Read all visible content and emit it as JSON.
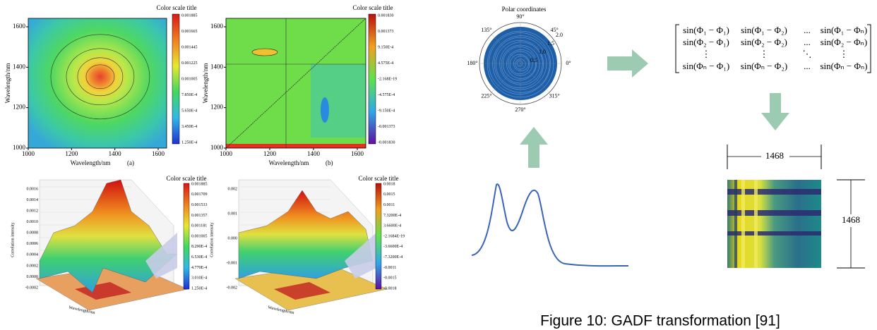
{
  "panel_a": {
    "title": "Color scale title",
    "colorbar_labels": [
      "0.001885",
      "0.001665",
      "0.001445",
      "0.001225",
      "0.001005",
      "7.850E-4",
      "5.650E-4",
      "3.450E-4",
      "1.250E-4"
    ],
    "y_label": "Wavelength/nm",
    "x_label": "Wavelength/nm",
    "tag": "(a)",
    "y_ticks": [
      "1000",
      "1200",
      "1400",
      "1600"
    ],
    "x_ticks": [
      "1000",
      "1200",
      "1400",
      "1600"
    ]
  },
  "panel_b": {
    "title": "Color scale title",
    "colorbar_labels": [
      "0.001830",
      "0.001373",
      "9.150E-4",
      "4.575E-4",
      "-2.168E-19",
      "-4.575E-4",
      "-9.150E-4",
      "-0.001373",
      "-0.001830"
    ],
    "y_label": "Wavelength/nm",
    "x_label": "Wavelength/nm",
    "tag": "(b)",
    "y_ticks": [
      "1000",
      "1200",
      "1400",
      "1600"
    ],
    "x_ticks": [
      "1000",
      "1200",
      "1400",
      "1600"
    ]
  },
  "panel_c": {
    "title": "Color scale title",
    "colorbar_labels": [
      "0.001885",
      "0.001709",
      "0.001533",
      "0.001357",
      "0.001181",
      "0.001005",
      "8.290E-4",
      "6.530E-4",
      "4.770E-4",
      "3.010E-4",
      "1.250E-4"
    ],
    "z_label": "Correlation intensity",
    "z_ticks": [
      "0.0016",
      "0.0014",
      "0.0012",
      "0.0010",
      "0.0008",
      "0.0006",
      "0.0004",
      "0.0002",
      "0.0000",
      "-0.0002"
    ],
    "x_label": "Wavelength/nm"
  },
  "panel_d": {
    "title": "Color scale title",
    "colorbar_labels": [
      "0.0018",
      "0.0015",
      "0.0011",
      "7.3200E-4",
      "3.6600E-4",
      "-2.1684E-19",
      "-3.6600E-4",
      "-7.3200E-4",
      "-0.0011",
      "-0.0015",
      "-0.0018"
    ],
    "z_label": "Correlation intensity",
    "z_ticks": [
      "0.002",
      "0.001",
      "0.000",
      "-0.001",
      "-0.002"
    ],
    "x_label": "Wavelength/nm"
  },
  "gadf": {
    "polar_title": "Polar coordinates",
    "angles": [
      "90°",
      "45°",
      "0°",
      "315°",
      "270°",
      "225°",
      "180°",
      "135°"
    ],
    "radial_ticks": [
      "0.5",
      "1.0",
      "1.5",
      "2.0"
    ],
    "matrix": [
      [
        "sin(Φ₁ − Φ₁)",
        "sin(Φ₁ − Φ₂)",
        "...",
        "sin(Φ₁ − Φₙ)"
      ],
      [
        "sin(Φ₂ − Φ₁)",
        "sin(Φ₂ − Φ₂)",
        "...",
        "sin(Φ₂ − Φₙ)"
      ],
      [
        "⋮",
        "⋮",
        "⋱",
        "⋮"
      ],
      [
        "sin(Φₙ − Φ₁)",
        "sin(Φₙ − Φ₂)",
        "...",
        "sin(Φₙ − Φₙ)"
      ]
    ],
    "width_label": "1468",
    "height_label": "1468"
  },
  "caption": "Figure 10: GADF transformation [91]"
}
